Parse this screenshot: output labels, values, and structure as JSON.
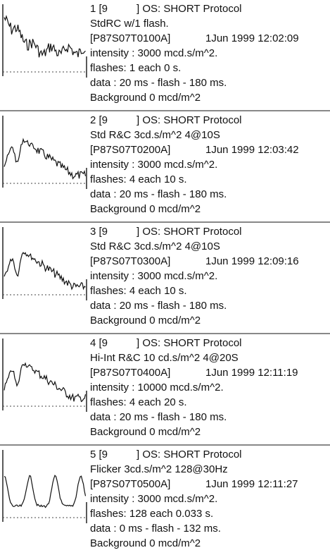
{
  "records": [
    {
      "number": "1 [9",
      "os": "] OS: SHORT Protocol",
      "name": "StdRC w/1 flash.",
      "file": "[P87S07T0100A]",
      "date": "1Jun 1999 12:02:09",
      "intensity": "intensity : 3000 mcd.s/m^2.",
      "flashes": "flashes: 1 each 0 s.",
      "data": "data : 20 ms - flash - 180 ms.",
      "background": "Background 0 mcd/m^2"
    },
    {
      "number": "2 [9",
      "os": "] OS: SHORT Protocol",
      "name": "Std R&C 3cd.s/m^2 4@10S",
      "file": "[P87S07T0200A]",
      "date": "1Jun 1999 12:03:42",
      "intensity": "intensity : 3000 mcd.s/m^2.",
      "flashes": "flashes: 4 each 10 s.",
      "data": "data : 20 ms - flash - 180 ms.",
      "background": "Background 0 mcd/m^2"
    },
    {
      "number": "3 [9",
      "os": "] OS: SHORT Protocol",
      "name": "Std R&C 3cd.s/m^2 4@10S",
      "file": "[P87S07T0300A]",
      "date": "1Jun 1999 12:09:16",
      "intensity": "intensity : 3000 mcd.s/m^2.",
      "flashes": "flashes: 4 each 10 s.",
      "data": "data : 20 ms - flash - 180 ms.",
      "background": "Background 0 mcd/m^2"
    },
    {
      "number": "4 [9",
      "os": "] OS: SHORT Protocol",
      "name": "Hi-Int R&C 10 cd.s/m^2 4@20S",
      "file": "[P87S07T0400A]",
      "date": "1Jun 1999 12:11:19",
      "intensity": "intensity : 10000 mcd.s/m^2.",
      "flashes": "flashes: 4 each 20 s.",
      "data": "data : 20 ms - flash - 180 ms.",
      "background": "Background 0 mcd/m^2"
    },
    {
      "number": "5 [9",
      "os": "] OS: SHORT Protocol",
      "name": "Flicker 3cd.s/m^2 128@30Hz",
      "file": "[P87S07T0500A]",
      "date": "1Jun 1999 12:11:27",
      "intensity": "intensity : 3000 mcd.s/m^2.",
      "flashes": "flashes: 128 each 0.033 s.",
      "data": "data : 0 ms - flash - 132 ms.",
      "background": "Background 0 mcd/m^2"
    }
  ]
}
